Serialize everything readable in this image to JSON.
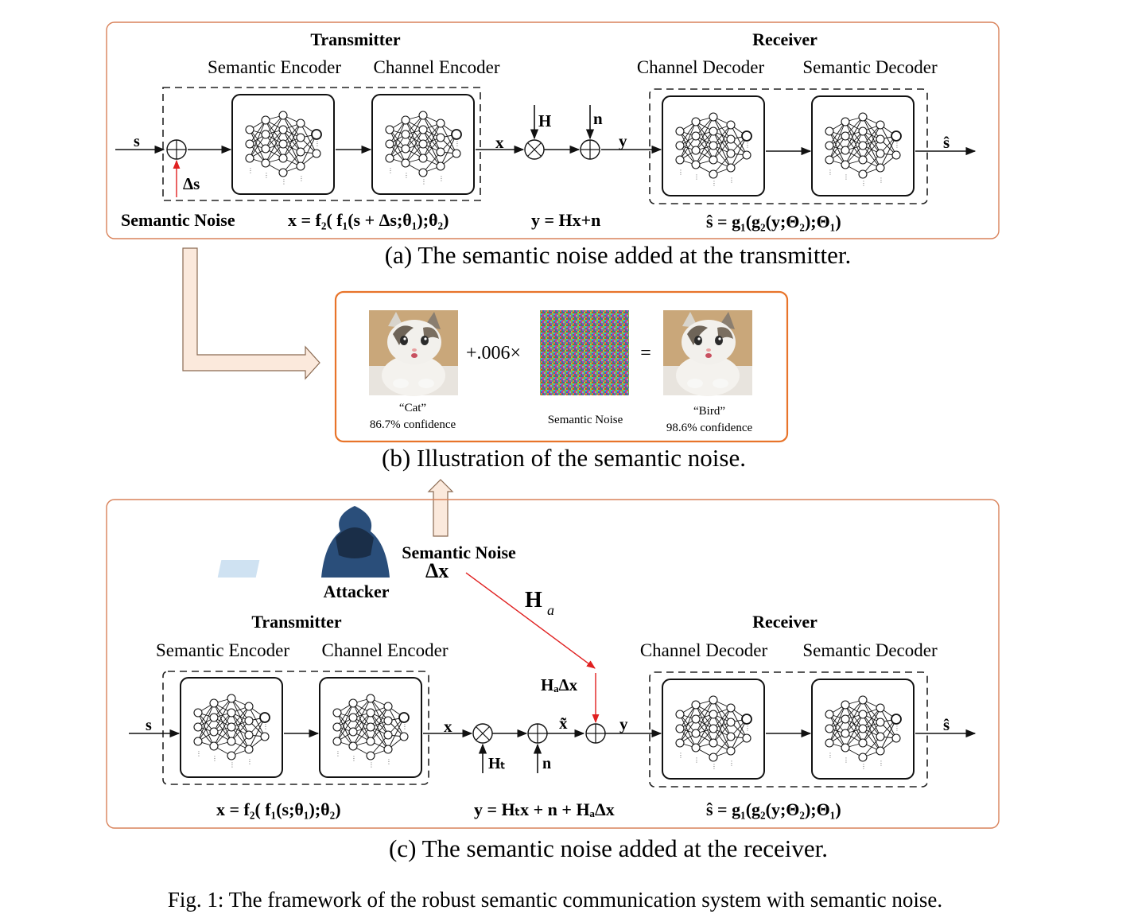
{
  "panel_a": {
    "transmitter": "Transmitter",
    "receiver": "Receiver",
    "semantic_encoder": "Semantic Encoder",
    "channel_encoder": "Channel Encoder",
    "channel_decoder": "Channel Decoder",
    "semantic_decoder": "Semantic Decoder",
    "input": "s",
    "delta": "Δs",
    "x": "x",
    "H": "H",
    "n": "n",
    "y": "y",
    "output": "ŝ",
    "semantic_noise": "Semantic Noise",
    "eq_tx": "x = f₂( f₁(s + Δs;θ₁);θ₂)",
    "eq_ch": "y = Hx+n",
    "eq_rx": "ŝ = g₁(g₂(y;Θ₂);Θ₁)",
    "caption": "(a) The semantic noise added at the transmitter."
  },
  "panel_b": {
    "coef": "+.006×",
    "equals": "=",
    "cat_label": "“Cat”",
    "cat_conf": "86.7% confidence",
    "noise_label": "Semantic Noise",
    "bird_label": "“Bird”",
    "bird_conf": "98.6% confidence",
    "caption": "(b) Illustration of the semantic noise."
  },
  "panel_c": {
    "attacker": "Attacker",
    "semantic_noise": "Semantic Noise",
    "delta": "Δx",
    "Ha": "H",
    "Ha_sub": "a",
    "HaDx": "HₐΔx",
    "transmitter": "Transmitter",
    "receiver": "Receiver",
    "semantic_encoder": "Semantic Encoder",
    "channel_encoder": "Channel Encoder",
    "channel_decoder": "Channel Decoder",
    "semantic_decoder": "Semantic Decoder",
    "input": "s",
    "x": "x",
    "xt": "x̃",
    "Ht": "Hₜ",
    "n": "n",
    "y": "y",
    "output": "ŝ",
    "eq_tx": "x = f₂( f₁(s;θ₁);θ₂)",
    "eq_ch": "y = Hₜx + n + HₐΔx",
    "eq_rx": "ŝ = g₁(g₂(y;Θ₂);Θ₁)",
    "caption": "(c) The semantic noise added at the receiver."
  },
  "figure_caption": "Fig. 1: The framework of the robust semantic communication system with semantic noise."
}
